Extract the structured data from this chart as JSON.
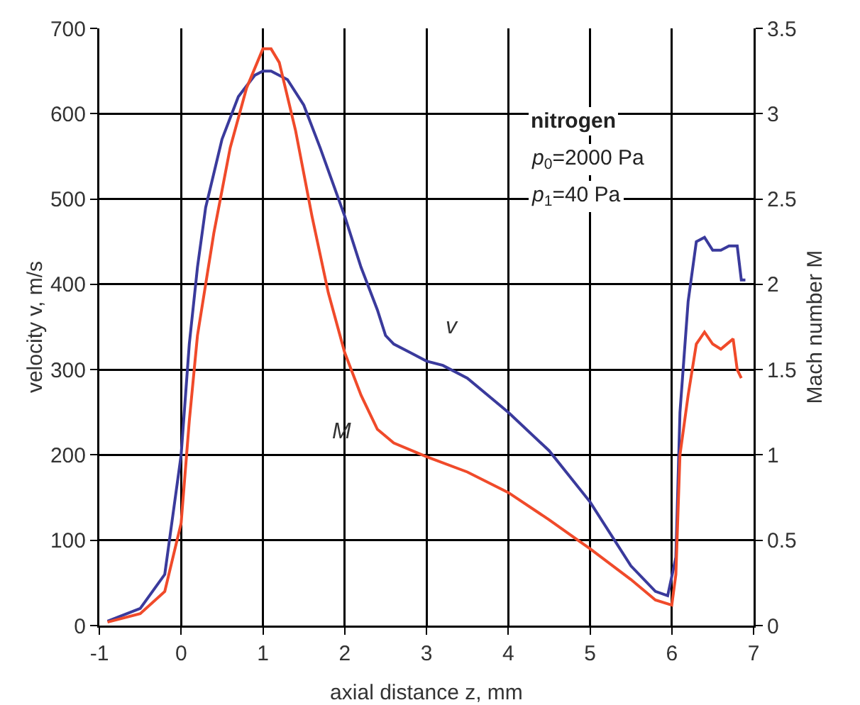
{
  "chart_data": {
    "type": "line",
    "xlabel": "axial distance z, mm",
    "ylabel": "velocity v, m/s",
    "y2label": "Mach number M",
    "xlim": [
      -1,
      7
    ],
    "xticks": [
      -1,
      0,
      1,
      2,
      3,
      4,
      5,
      6,
      7
    ],
    "ylim": [
      0,
      700
    ],
    "yticks": [
      0,
      100,
      200,
      300,
      400,
      500,
      600,
      700
    ],
    "y2lim": [
      0,
      3.5
    ],
    "y2ticks": [
      0,
      0.5,
      1,
      1.5,
      2,
      2.5,
      3,
      3.5
    ],
    "grid": true,
    "marker": "none",
    "line_style": "solid",
    "series": [
      {
        "color": "#3a3a9c",
        "x": [
          -0.9,
          -0.5,
          -0.2,
          0,
          0.1,
          0.2,
          0.3,
          0.5,
          0.7,
          0.9,
          1.0,
          1.1,
          1.3,
          1.5,
          1.7,
          2.0,
          2.2,
          2.4,
          2.5,
          2.6,
          2.8,
          3.0,
          3.2,
          3.5,
          4.0,
          4.5,
          5.0,
          5.5,
          5.8,
          5.95,
          6.05,
          6.1,
          6.2,
          6.3,
          6.4,
          6.5,
          6.6,
          6.7,
          6.8,
          6.85,
          6.9
        ],
        "values": [
          5,
          20,
          60,
          200,
          330,
          420,
          490,
          570,
          620,
          645,
          650,
          650,
          640,
          610,
          560,
          480,
          420,
          370,
          340,
          330,
          320,
          310,
          305,
          290,
          250,
          205,
          145,
          70,
          40,
          35,
          80,
          250,
          380,
          450,
          455,
          440,
          440,
          445,
          445,
          405,
          405
        ]
      },
      {
        "color": "#f04a2a",
        "axis": "y2",
        "x": [
          -0.9,
          -0.5,
          -0.2,
          0,
          0.1,
          0.2,
          0.4,
          0.6,
          0.8,
          1.0,
          1.1,
          1.2,
          1.4,
          1.6,
          1.8,
          2.0,
          2.2,
          2.4,
          2.6,
          3.0,
          3.5,
          4.0,
          4.5,
          5.0,
          5.5,
          5.8,
          6.0,
          6.05,
          6.1,
          6.2,
          6.3,
          6.4,
          6.5,
          6.6,
          6.7,
          6.75,
          6.8,
          6.85
        ],
        "values": [
          0.02,
          0.07,
          0.2,
          0.6,
          1.2,
          1.7,
          2.3,
          2.8,
          3.15,
          3.38,
          3.38,
          3.3,
          2.9,
          2.4,
          1.95,
          1.6,
          1.35,
          1.15,
          1.07,
          0.99,
          0.9,
          0.78,
          0.62,
          0.45,
          0.27,
          0.15,
          0.12,
          0.3,
          1.0,
          1.35,
          1.65,
          1.72,
          1.65,
          1.62,
          1.66,
          1.68,
          1.5,
          1.45
        ]
      }
    ],
    "annotations": [
      "v",
      "M",
      "nitrogen",
      "p$_{0}$=2000 Pa",
      "p$_{1}$=40 Pa"
    ]
  }
}
